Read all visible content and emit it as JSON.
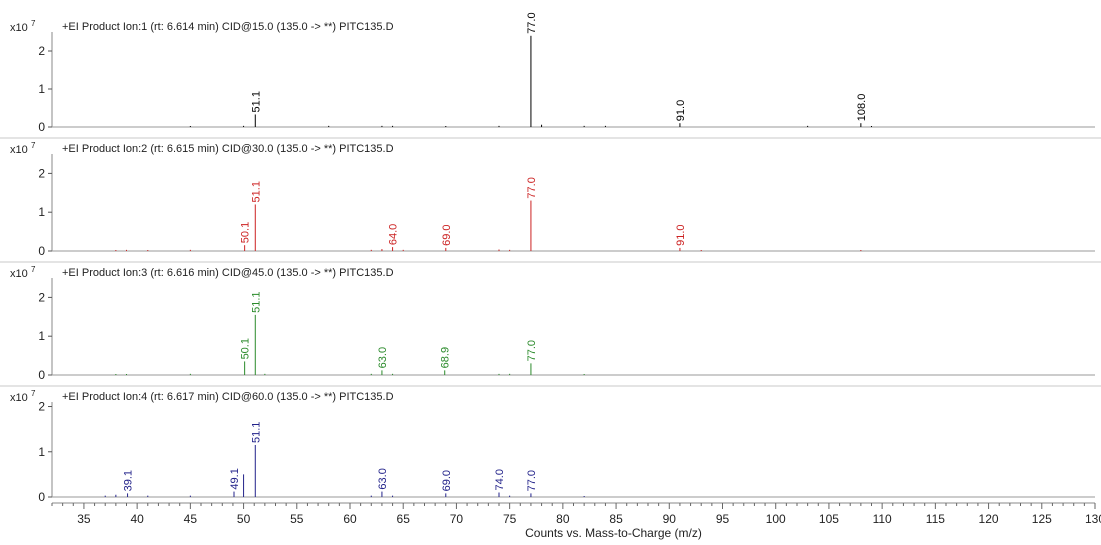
{
  "chart_data": [
    {
      "type": "bar",
      "scale_label": "x10",
      "scale_exponent": "7",
      "title": "+EI Product Ion:1 (rt: 6.614 min) CID@15.0 (135.0 -> **) PITC135.D",
      "color": "#000000",
      "ylim": [
        0,
        2.5
      ],
      "yticks": [
        "0",
        "1",
        "2"
      ],
      "peaks": [
        {
          "x": 45,
          "y": 0.02
        },
        {
          "x": 50,
          "y": 0.03
        },
        {
          "x": 51.1,
          "y": 0.33,
          "label": "51.1"
        },
        {
          "x": 58,
          "y": 0.03
        },
        {
          "x": 63,
          "y": 0.03
        },
        {
          "x": 64,
          "y": 0.03
        },
        {
          "x": 69,
          "y": 0.02
        },
        {
          "x": 74,
          "y": 0.03
        },
        {
          "x": 77.0,
          "y": 2.4,
          "label": "77.0"
        },
        {
          "x": 78,
          "y": 0.06
        },
        {
          "x": 82,
          "y": 0.03
        },
        {
          "x": 84,
          "y": 0.03
        },
        {
          "x": 91.0,
          "y": 0.1,
          "label": "91.0"
        },
        {
          "x": 103,
          "y": 0.03
        },
        {
          "x": 108.0,
          "y": 0.1,
          "label": "108.0"
        },
        {
          "x": 109,
          "y": 0.02
        }
      ]
    },
    {
      "type": "bar",
      "scale_label": "x10",
      "scale_exponent": "7",
      "title": "+EI Product Ion:2 (rt: 6.615 min) CID@30.0 (135.0 -> **) PITC135.D",
      "color": "#cc2222",
      "ylim": [
        0,
        2.5
      ],
      "yticks": [
        "0",
        "1",
        "2"
      ],
      "peaks": [
        {
          "x": 38,
          "y": 0.02
        },
        {
          "x": 39,
          "y": 0.03
        },
        {
          "x": 41,
          "y": 0.02
        },
        {
          "x": 45,
          "y": 0.03
        },
        {
          "x": 50.1,
          "y": 0.15,
          "label": "50.1"
        },
        {
          "x": 51.1,
          "y": 1.2,
          "label": "51.1"
        },
        {
          "x": 62,
          "y": 0.03
        },
        {
          "x": 63,
          "y": 0.05
        },
        {
          "x": 64.0,
          "y": 0.1,
          "label": "64.0"
        },
        {
          "x": 65,
          "y": 0.03
        },
        {
          "x": 69.0,
          "y": 0.08,
          "label": "69.0"
        },
        {
          "x": 74,
          "y": 0.04
        },
        {
          "x": 75,
          "y": 0.03
        },
        {
          "x": 77.0,
          "y": 1.3,
          "label": "77.0"
        },
        {
          "x": 91.0,
          "y": 0.08,
          "label": "91.0"
        },
        {
          "x": 93,
          "y": 0.02
        },
        {
          "x": 108,
          "y": 0.02
        }
      ]
    },
    {
      "type": "bar",
      "scale_label": "x10",
      "scale_exponent": "7",
      "title": "+EI Product Ion:3 (rt: 6.616 min) CID@45.0 (135.0 -> **) PITC135.D",
      "color": "#2a8a2a",
      "ylim": [
        0,
        2.5
      ],
      "yticks": [
        "0",
        "1",
        "2"
      ],
      "peaks": [
        {
          "x": 38,
          "y": 0.02
        },
        {
          "x": 39,
          "y": 0.02
        },
        {
          "x": 45,
          "y": 0.03
        },
        {
          "x": 50.1,
          "y": 0.35,
          "label": "50.1"
        },
        {
          "x": 51.1,
          "y": 1.55,
          "label": "51.1"
        },
        {
          "x": 52,
          "y": 0.03
        },
        {
          "x": 62,
          "y": 0.03
        },
        {
          "x": 63.0,
          "y": 0.12,
          "label": "63.0"
        },
        {
          "x": 64,
          "y": 0.03
        },
        {
          "x": 68.9,
          "y": 0.12,
          "label": "68.9"
        },
        {
          "x": 74,
          "y": 0.03
        },
        {
          "x": 75,
          "y": 0.03
        },
        {
          "x": 77.0,
          "y": 0.3,
          "label": "77.0"
        },
        {
          "x": 82,
          "y": 0.02
        }
      ]
    },
    {
      "type": "bar",
      "scale_label": "x10",
      "scale_exponent": "7",
      "title": "+EI Product Ion:4 (rt: 6.617 min) CID@60.0 (135.0 -> **) PITC135.D",
      "color": "#22228a",
      "ylim": [
        0,
        2.1
      ],
      "yticks": [
        "0",
        "1",
        "2"
      ],
      "peaks": [
        {
          "x": 37,
          "y": 0.03
        },
        {
          "x": 38,
          "y": 0.05
        },
        {
          "x": 39.1,
          "y": 0.08,
          "label": "39.1"
        },
        {
          "x": 41,
          "y": 0.03
        },
        {
          "x": 45,
          "y": 0.03
        },
        {
          "x": 49.1,
          "y": 0.12,
          "label": "49.1"
        },
        {
          "x": 50,
          "y": 0.5
        },
        {
          "x": 51.1,
          "y": 1.15,
          "label": "51.1"
        },
        {
          "x": 62,
          "y": 0.03
        },
        {
          "x": 63.0,
          "y": 0.12,
          "label": "63.0"
        },
        {
          "x": 64,
          "y": 0.03
        },
        {
          "x": 69.0,
          "y": 0.08,
          "label": "69.0"
        },
        {
          "x": 74.0,
          "y": 0.1,
          "label": "74.0"
        },
        {
          "x": 75,
          "y": 0.03
        },
        {
          "x": 77.0,
          "y": 0.08,
          "label": "77.0"
        },
        {
          "x": 82,
          "y": 0.02
        }
      ]
    }
  ],
  "x_axis": {
    "xlim": [
      32,
      130
    ],
    "ticks": [
      35,
      40,
      45,
      50,
      55,
      60,
      65,
      70,
      75,
      80,
      85,
      90,
      95,
      100,
      105,
      110,
      115,
      120,
      125,
      130
    ],
    "tick_labels": [
      "35",
      "40",
      "45",
      "50",
      "55",
      "60",
      "65",
      "70",
      "75",
      "80",
      "85",
      "90",
      "95",
      "100",
      "105",
      "110",
      "115",
      "120",
      "125",
      "130"
    ],
    "xlabel": "Counts vs. Mass-to-Charge (m/z)"
  }
}
